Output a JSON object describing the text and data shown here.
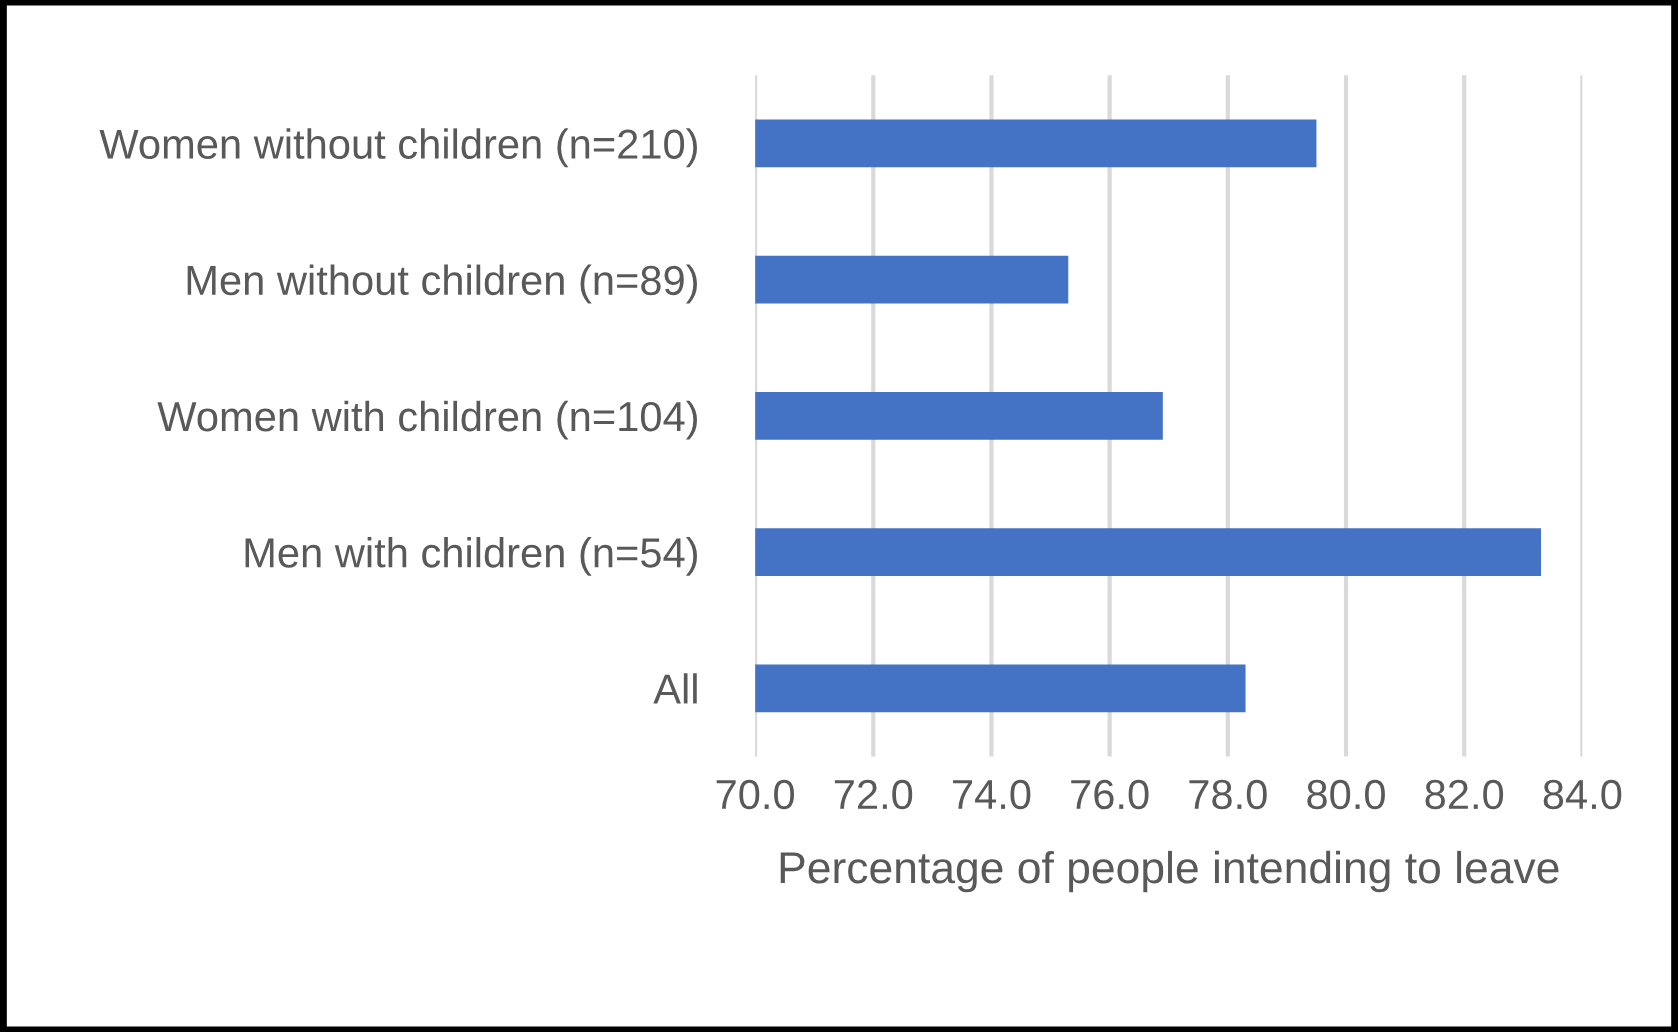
{
  "chart_data": {
    "type": "bar",
    "orientation": "horizontal",
    "categories": [
      "Women without children (n=210)",
      "Men without children (n=89)",
      "Women with children (n=104)",
      "Men with children (n=54)",
      "All"
    ],
    "values": [
      79.5,
      75.3,
      76.9,
      83.3,
      78.3
    ],
    "color": "#4472c4",
    "xlabel": "Percentage of people intending to leave",
    "xlim": [
      70,
      84
    ],
    "xticks": [
      {
        "value": 70,
        "label": "70.0"
      },
      {
        "value": 72,
        "label": "72.0"
      },
      {
        "value": 74,
        "label": "74.0"
      },
      {
        "value": 76,
        "label": "76.0"
      },
      {
        "value": 78,
        "label": "78.0"
      },
      {
        "value": 80,
        "label": "80.0"
      },
      {
        "value": 82,
        "label": "82.0"
      },
      {
        "value": 84,
        "label": "84.0"
      }
    ],
    "grid": "x",
    "legend": false
  }
}
